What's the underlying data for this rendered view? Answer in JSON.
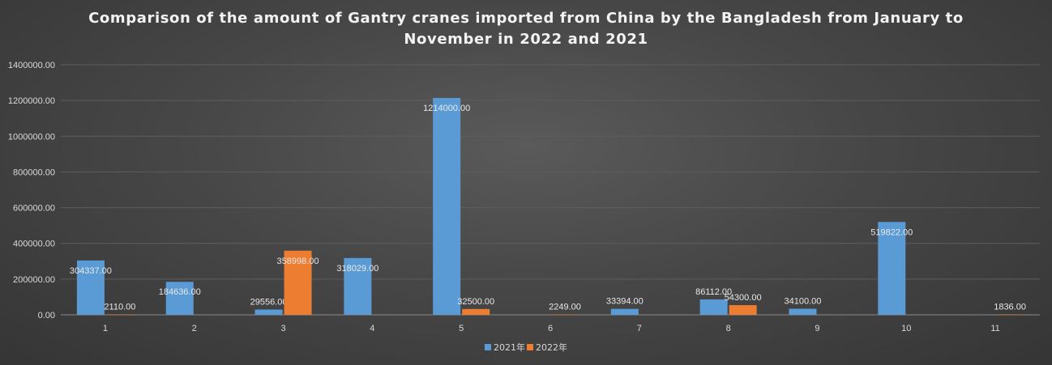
{
  "chart_data": {
    "type": "bar",
    "title": "Comparison of the amount of Gantry cranes imported from China by the Bangladesh from January to November in 2022 and 2021",
    "title_lines": [
      "Comparison of the amount of Gantry cranes imported from China by the Bangladesh from January to",
      "November in 2022 and 2021"
    ],
    "categories": [
      "1",
      "2",
      "3",
      "4",
      "5",
      "6",
      "7",
      "8",
      "9",
      "10",
      "11"
    ],
    "ylim": [
      0,
      1400000
    ],
    "yticks": [
      "0.00",
      "200000.00",
      "400000.00",
      "600000.00",
      "800000.00",
      "1000000.00",
      "1200000.00",
      "1400000.00"
    ],
    "grid": true,
    "legend_position": "bottom",
    "series": [
      {
        "name": "2021年",
        "color": "#5b9bd5",
        "values": [
          304337,
          184636,
          29556,
          318029,
          1214000,
          null,
          33394,
          86112,
          34100,
          519822,
          null
        ],
        "labels": [
          "304337.00",
          "184636.00",
          "29556.00",
          "318029.00",
          "1214000.00",
          "",
          "33394.00",
          "86112.00",
          "34100.00",
          "519822.00",
          ""
        ]
      },
      {
        "name": "2022年",
        "color": "#ed7d31",
        "values": [
          2110,
          null,
          358998,
          null,
          32500,
          2249,
          null,
          54300,
          null,
          null,
          1836
        ],
        "labels": [
          "2110.00",
          "",
          "358998.00",
          "",
          "32500.00",
          "2249.00",
          "",
          "54300.00",
          "",
          "",
          "1836.00"
        ]
      }
    ]
  }
}
